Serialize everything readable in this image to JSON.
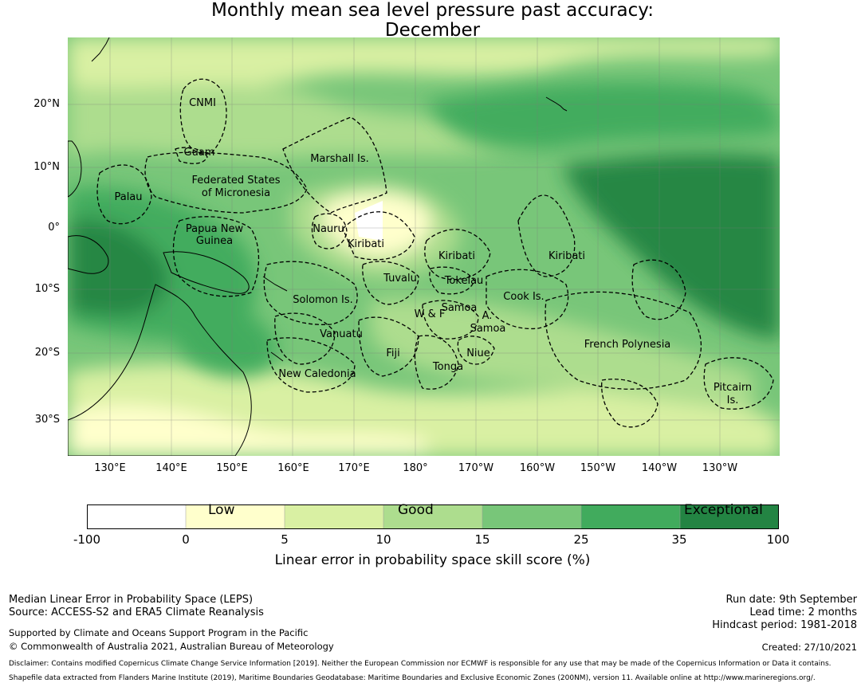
{
  "title": {
    "line1": "Monthly mean sea level pressure past accuracy:",
    "line2": "December"
  },
  "map": {
    "lat_labels": [
      "20°N",
      "10°N",
      "0°",
      "10°S",
      "20°S",
      "30°S"
    ],
    "lon_labels": [
      "130°E",
      "140°E",
      "150°E",
      "160°E",
      "170°E",
      "180°",
      "170°W",
      "160°W",
      "150°W",
      "140°W",
      "130°W"
    ],
    "regions": [
      {
        "label": "CNMI"
      },
      {
        "label": "Guam"
      },
      {
        "label": "Marshall Is."
      },
      {
        "label": "Federated States"
      },
      {
        "label": "of Micronesia"
      },
      {
        "label": "Palau"
      },
      {
        "label": "Nauru"
      },
      {
        "label": "Papua New"
      },
      {
        "label": "Guinea"
      },
      {
        "label": "Kiribati"
      },
      {
        "label": "Kiribati"
      },
      {
        "label": "Kiribati"
      },
      {
        "label": "Tuvalu"
      },
      {
        "label": "Tokelau"
      },
      {
        "label": "Solomon Is."
      },
      {
        "label": "Cook Is."
      },
      {
        "label": "W & F"
      },
      {
        "label": "Samoa"
      },
      {
        "label": "A."
      },
      {
        "label": "Samoa"
      },
      {
        "label": "Vanuatu"
      },
      {
        "label": "Fiji"
      },
      {
        "label": "Niue"
      },
      {
        "label": "French Polynesia"
      },
      {
        "label": "Tonga"
      },
      {
        "label": "New Caledonia"
      },
      {
        "label": "Pitcairn"
      },
      {
        "label": "Is."
      }
    ]
  },
  "colorbar": {
    "colors": [
      "#ffffff",
      "#ffffcc",
      "#d9f0a3",
      "#addd8e",
      "#78c679",
      "#41ab5d",
      "#238443"
    ],
    "ticks": [
      "-100",
      "0",
      "5",
      "10",
      "15",
      "25",
      "35",
      "100"
    ],
    "words": [
      "Low",
      "Good",
      "Exceptional"
    ],
    "label": "Linear error in probability space skill score (%)"
  },
  "footer": {
    "left1": "Median Linear Error in Probability Space (LEPS)",
    "left2": "Source: ACCESS-S2 and ERA5 Climate Reanalysis",
    "left3": "Supported by Climate and Oceans Support Program in the Pacific",
    "left4": "© Commonwealth of Australia 2021, Australian Bureau of Meteorology",
    "right1": "Run date: 9th September",
    "right2": "Lead time: 2 months",
    "right3": "Hindcast period: 1981-2018",
    "right4": "Created: 27/10/2021",
    "disclaimer1": "Disclaimer: Contains modified Copernicus Climate Change Service Information [2019]. Neither the European Commission nor ECMWF is responsible for any use that may be made of the Copernicus Information or Data it contains.",
    "disclaimer2": "Shapefile data extracted from Flanders Marine Institute (2019), Maritime Boundaries Geodatabase: Maritime Boundaries and Exclusive Economic Zones (200NM), version 11. Available online at http://www.marineregions.org/."
  }
}
